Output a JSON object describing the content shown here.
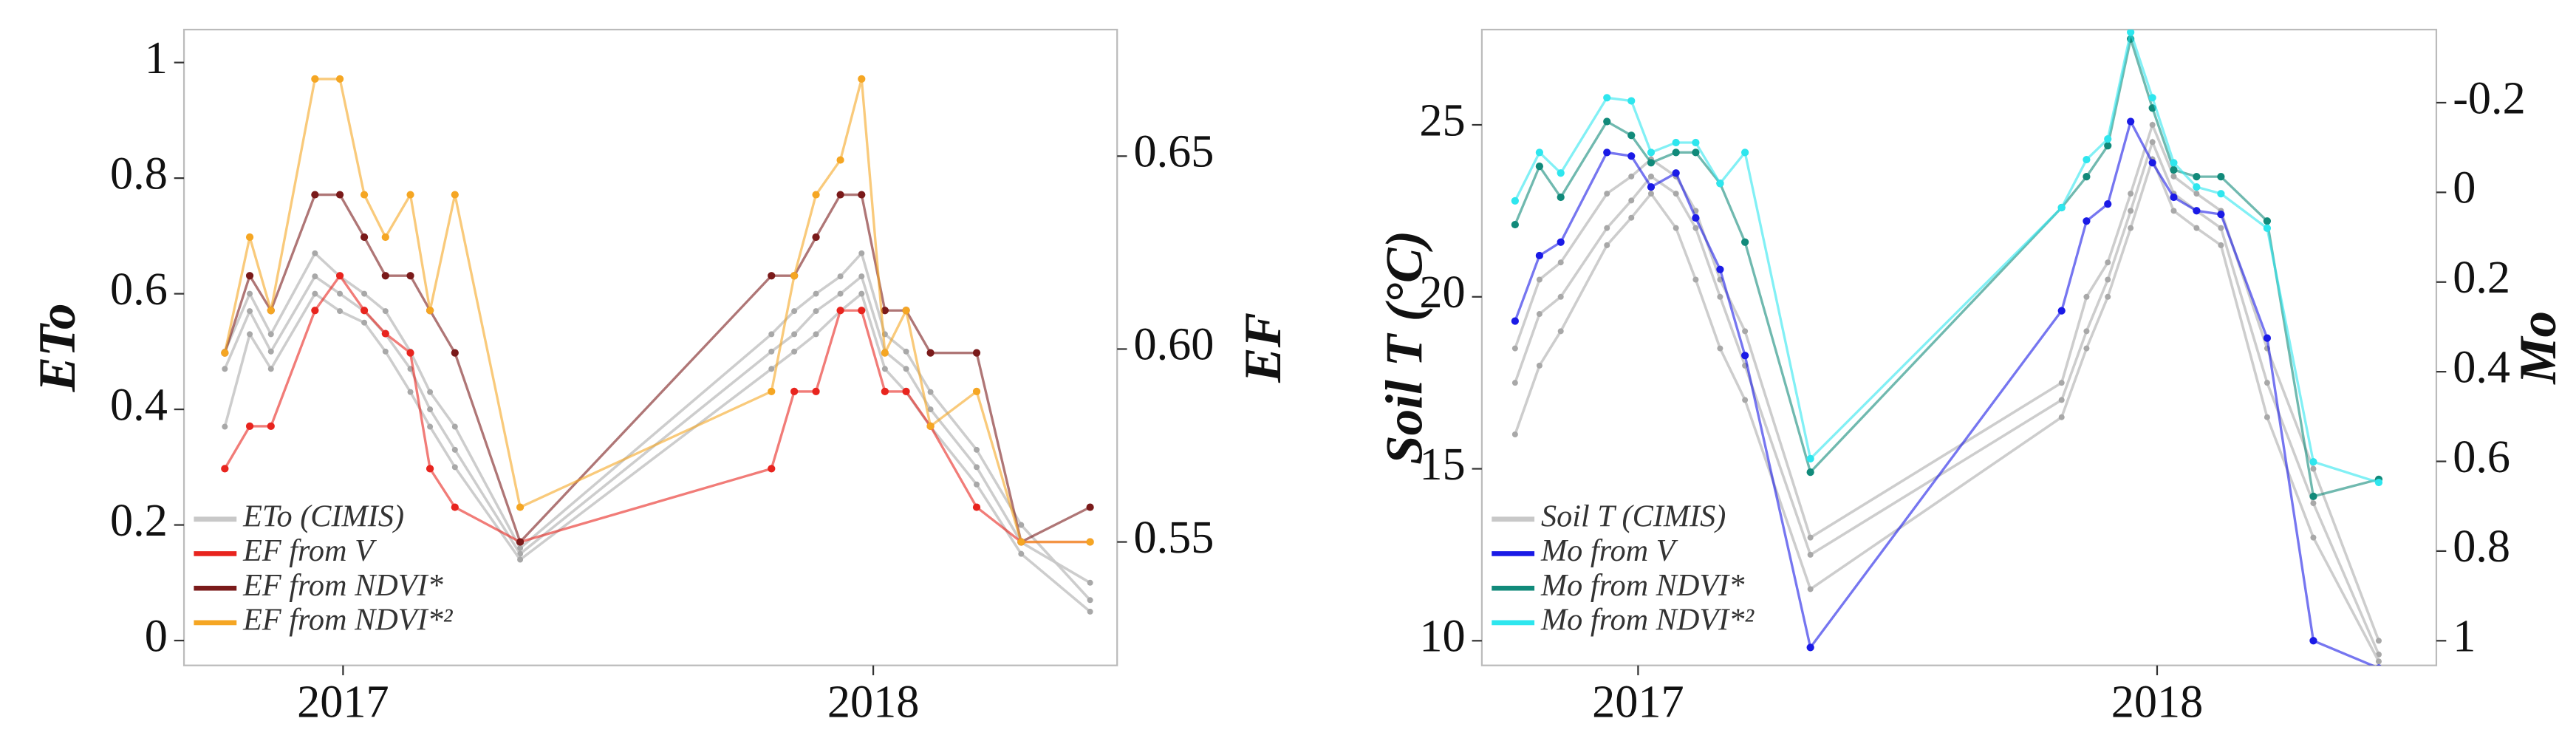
{
  "chart_data": [
    {
      "type": "line",
      "ylabel": "ETo",
      "y2label": "EF",
      "x": [
        2016.777,
        2016.824,
        2016.864,
        2016.947,
        2016.994,
        2017.04,
        2017.08,
        2017.127,
        2017.164,
        2017.211,
        2017.334,
        2017.808,
        2017.851,
        2017.892,
        2017.938,
        2017.978,
        2018.022,
        2018.062,
        2018.108,
        2018.195,
        2018.279,
        2018.409
      ],
      "xlim": [
        2016.7,
        2018.46
      ],
      "xticks": [
        2017,
        2018
      ],
      "ylim": [
        -0.043,
        1.057
      ],
      "yticks": [
        0,
        0.2,
        0.4,
        0.6,
        0.8,
        1
      ],
      "y2lim": [
        0.518,
        0.6828
      ],
      "y2ticks": [
        0.55,
        {
          "value": 0.6,
          "label": "0.60"
        },
        0.65
      ],
      "series": [
        {
          "name": "ETo (CIMIS)",
          "color": "#c8c8c8",
          "values": [
            0.47,
            0.57,
            0.5,
            0.63,
            0.6,
            0.57,
            0.53,
            0.47,
            0.4,
            0.33,
            0.15,
            0.5,
            0.53,
            0.57,
            0.6,
            0.63,
            0.5,
            0.47,
            0.4,
            0.3,
            0.17,
            0.1
          ]
        },
        {
          "color": "#c8c8c8",
          "values": [
            0.5,
            0.6,
            0.53,
            0.67,
            0.63,
            0.6,
            0.57,
            0.5,
            0.43,
            0.37,
            0.16,
            0.53,
            0.57,
            0.6,
            0.63,
            0.67,
            0.53,
            0.5,
            0.43,
            0.33,
            0.2,
            0.07
          ]
        },
        {
          "color": "#c8c8c8",
          "values": [
            0.37,
            0.53,
            0.47,
            0.6,
            0.57,
            0.55,
            0.5,
            0.43,
            0.37,
            0.3,
            0.14,
            0.47,
            0.5,
            0.53,
            0.57,
            0.6,
            0.47,
            0.43,
            0.37,
            0.27,
            0.15,
            0.05
          ]
        },
        {
          "name": "EF from V",
          "color": "#e8241e",
          "axis": "y2",
          "values": [
            0.569,
            0.58,
            0.58,
            0.61,
            0.619,
            0.61,
            0.604,
            0.599,
            0.569,
            0.559,
            0.55,
            0.569,
            0.589,
            0.589,
            0.61,
            0.61,
            0.589,
            0.589,
            0.58,
            0.559,
            0.55,
            0.55
          ]
        },
        {
          "name": "EF from NDVI*",
          "color": "#7a1a1a",
          "axis": "y2",
          "values": [
            0.599,
            0.619,
            0.61,
            0.64,
            0.64,
            0.629,
            0.619,
            0.619,
            0.61,
            0.599,
            0.55,
            0.619,
            0.619,
            0.629,
            0.64,
            0.64,
            0.61,
            0.61,
            0.599,
            0.599,
            0.55,
            0.559
          ]
        },
        {
          "name": "EF from NDVI*²",
          "color": "#f5a623",
          "axis": "y2",
          "values": [
            0.599,
            0.629,
            0.61,
            0.67,
            0.67,
            0.64,
            0.629,
            0.64,
            0.61,
            0.64,
            0.559,
            0.589,
            0.619,
            0.64,
            0.649,
            0.67,
            0.599,
            0.61,
            0.58,
            0.589,
            0.55,
            0.55
          ]
        }
      ]
    },
    {
      "type": "line",
      "ylabel": "Soil T (°C)",
      "y2label": "Mo",
      "x": [
        2016.763,
        2016.81,
        2016.851,
        2016.94,
        2016.987,
        2017.025,
        2017.073,
        2017.111,
        2017.158,
        2017.206,
        2017.332,
        2017.816,
        2017.864,
        2017.905,
        2017.949,
        2017.991,
        2018.032,
        2018.076,
        2018.123,
        2018.212,
        2018.301,
        2018.427
      ],
      "xlim": [
        2016.699,
        2018.538
      ],
      "xticks": [
        2017,
        2018
      ],
      "ylim": [
        9.283,
        27.77
      ],
      "yticks": [
        10,
        15,
        20,
        25
      ],
      "y2lim": [
        1.055,
        -0.363
      ],
      "y2ticks": [
        -0.2,
        0,
        0.2,
        0.4,
        0.6,
        0.8,
        1
      ],
      "series": [
        {
          "name": "Soil T (CIMIS)",
          "color": "#c8c8c8",
          "values": [
            17.5,
            19.5,
            20,
            22,
            22.8,
            23.5,
            23,
            22,
            20,
            18,
            12.5,
            17,
            19,
            20.5,
            22.5,
            24.5,
            23,
            22.5,
            22,
            17.5,
            14,
            9.6
          ]
        },
        {
          "color": "#c8c8c8",
          "values": [
            16,
            18,
            19,
            21.5,
            22.3,
            23,
            22,
            20.5,
            18.5,
            17,
            11.5,
            16.5,
            18.5,
            20,
            22,
            24,
            22.5,
            22,
            21.5,
            16.5,
            13,
            9.4
          ]
        },
        {
          "color": "#c8c8c8",
          "values": [
            18.5,
            20.5,
            21,
            23,
            23.5,
            24,
            23.5,
            22.5,
            20.5,
            19,
            13,
            17.5,
            20,
            21,
            23,
            25,
            23.5,
            23,
            22.5,
            18.5,
            15,
            10
          ]
        },
        {
          "name": "Mo from V",
          "color": "#1a1ae6",
          "axis": "y2",
          "values": [
            0.287,
            0.141,
            0.111,
            -0.089,
            -0.081,
            -0.012,
            -0.043,
            0.057,
            0.172,
            0.364,
            1.015,
            0.264,
            0.064,
            0.026,
            -0.158,
            -0.066,
            0.011,
            0.041,
            0.049,
            0.325,
            1.0,
            1.061
          ]
        },
        {
          "name": "Mo from NDVI*",
          "color": "#118a7a",
          "axis": "y2",
          "values": [
            0.072,
            -0.058,
            0.011,
            -0.158,
            -0.127,
            -0.066,
            -0.089,
            -0.089,
            -0.02,
            0.111,
            0.624,
            0.034,
            -0.035,
            -0.104,
            -0.342,
            -0.188,
            -0.05,
            -0.035,
            -0.035,
            0.064,
            0.678,
            0.64
          ]
        },
        {
          "name": "Mo from NDVI*²",
          "color": "#2ee6ee",
          "axis": "y2",
          "values": [
            0.019,
            -0.089,
            -0.043,
            -0.211,
            -0.204,
            -0.089,
            -0.111,
            -0.111,
            -0.02,
            -0.089,
            0.594,
            0.034,
            -0.073,
            -0.119,
            -0.357,
            -0.211,
            -0.066,
            -0.012,
            0.003,
            0.08,
            0.601,
            0.647
          ]
        }
      ]
    }
  ]
}
